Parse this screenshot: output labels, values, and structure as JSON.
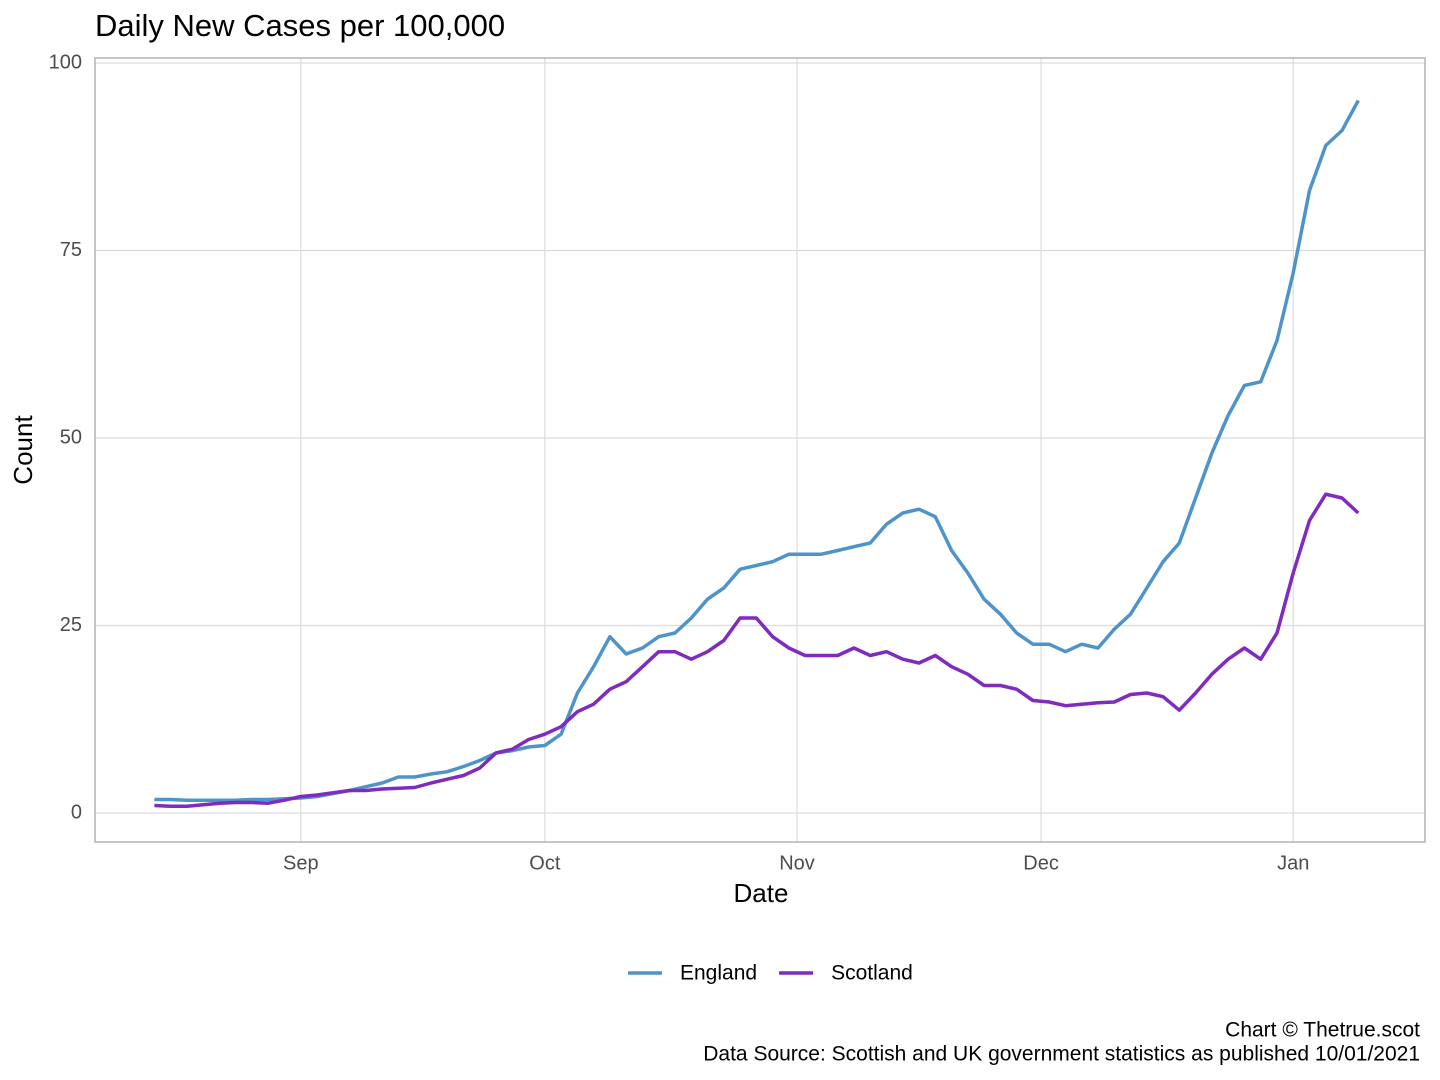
{
  "chart_data": {
    "type": "line",
    "title": "Daily New Cases per 100,000",
    "x_label": "Date",
    "y_label": "Count",
    "caption": [
      "Chart © Thetrue.scot",
      "Data Source: Scottish and UK government statistics as published 10/01/2021"
    ],
    "x": [
      -18,
      -16,
      -14,
      -12,
      -10,
      -8,
      -6,
      -4,
      -2,
      0,
      2,
      4,
      6,
      8,
      10,
      12,
      14,
      16,
      18,
      20,
      22,
      24,
      26,
      28,
      30,
      32,
      34,
      36,
      38,
      40,
      42,
      44,
      46,
      48,
      50,
      52,
      54,
      56,
      58,
      60,
      62,
      64,
      66,
      68,
      70,
      72,
      74,
      76,
      78,
      80,
      82,
      84,
      86,
      88,
      90,
      92,
      94,
      96,
      98,
      100,
      102,
      104,
      106,
      108,
      110,
      112,
      114,
      116,
      118,
      120,
      122,
      124,
      126,
      128,
      130
    ],
    "series": [
      {
        "name": "England",
        "color": "#4f94c9",
        "values": [
          1.8,
          1.8,
          1.7,
          1.7,
          1.7,
          1.7,
          1.8,
          1.8,
          1.9,
          2.0,
          2.2,
          2.6,
          3.0,
          3.5,
          4.0,
          4.8,
          4.8,
          5.2,
          5.5,
          6.2,
          7.0,
          8.0,
          8.3,
          8.8,
          9.0,
          10.5,
          16,
          19.5,
          23.5,
          21.2,
          22,
          23.5,
          24,
          26,
          28.5,
          30,
          32.5,
          33,
          33.5,
          34.5,
          34.5,
          34.5,
          35,
          35.5,
          36,
          38.5,
          40,
          40.5,
          39.5,
          35,
          32,
          28.5,
          26.5,
          24,
          22.5,
          22.5,
          21.5,
          22.5,
          22,
          24.5,
          26.5,
          30,
          33.5,
          36,
          42,
          48,
          53,
          57,
          57.5,
          63,
          72,
          83,
          89,
          91,
          95
        ]
      },
      {
        "name": "Scotland",
        "color": "#7f2bbd",
        "values": [
          1.0,
          0.9,
          0.9,
          1.1,
          1.3,
          1.4,
          1.4,
          1.3,
          1.7,
          2.2,
          2.4,
          2.7,
          3.0,
          3.0,
          3.2,
          3.3,
          3.4,
          4.0,
          4.5,
          5.0,
          6.0,
          8.0,
          8.5,
          9.8,
          10.5,
          11.5,
          13.5,
          14.5,
          16.5,
          17.5,
          19.5,
          21.5,
          21.5,
          20.5,
          21.5,
          23,
          26,
          26,
          23.5,
          22,
          21,
          21,
          21,
          22,
          21,
          21.5,
          20.5,
          20,
          21,
          19.5,
          18.5,
          17,
          17,
          16.5,
          15,
          14.8,
          14.3,
          14.5,
          14.7,
          14.8,
          15.8,
          16,
          15.5,
          13.7,
          16,
          18.5,
          20.5,
          22,
          20.5,
          24,
          32,
          39,
          42.5,
          42,
          40
        ]
      }
    ],
    "xlim": [
      -25.3,
      138.2
    ],
    "xticks": [
      {
        "value": 0,
        "label": "Sep"
      },
      {
        "value": 30,
        "label": "Oct"
      },
      {
        "value": 61,
        "label": "Nov"
      },
      {
        "value": 91,
        "label": "Dec"
      },
      {
        "value": 122,
        "label": "Jan"
      }
    ],
    "ylim": [
      -3.87,
      100.67
    ],
    "yticks": [
      0,
      25,
      50,
      75,
      100
    ],
    "grid": true,
    "legend": "bottom"
  }
}
